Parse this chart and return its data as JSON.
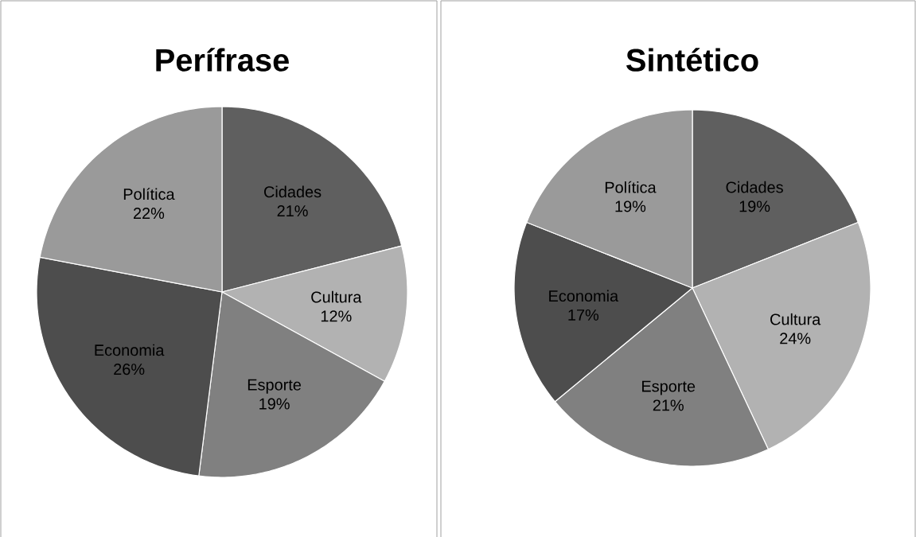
{
  "chart_data": [
    {
      "type": "pie",
      "title": "Perífrase",
      "categories": [
        "Cidades",
        "Cultura",
        "Esporte",
        "Economia",
        "Política"
      ],
      "values": [
        21,
        12,
        19,
        26,
        22
      ],
      "value_labels": [
        "21%",
        "12%",
        "19%",
        "26%",
        "22%"
      ],
      "colors": [
        "#5f5f5f",
        "#b2b2b2",
        "#808080",
        "#4d4d4d",
        "#9a9a9a"
      ]
    },
    {
      "type": "pie",
      "title": "Sintético",
      "categories": [
        "Cidades",
        "Cultura",
        "Esporte",
        "Economia",
        "Política"
      ],
      "values": [
        19,
        24,
        21,
        17,
        19
      ],
      "value_labels": [
        "19%",
        "24%",
        "21%",
        "17%",
        "19%"
      ],
      "colors": [
        "#5f5f5f",
        "#b2b2b2",
        "#808080",
        "#4d4d4d",
        "#9a9a9a"
      ]
    }
  ]
}
